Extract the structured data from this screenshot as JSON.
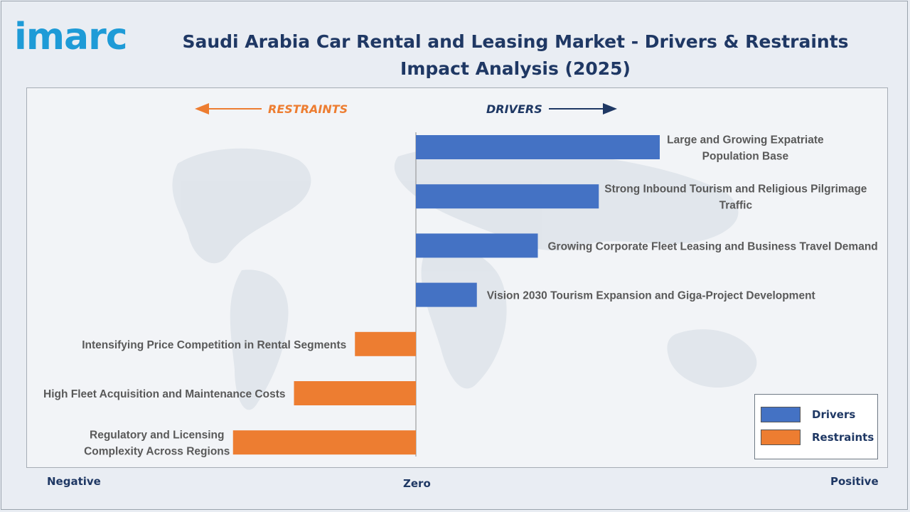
{
  "brand": {
    "logo_text": "imarc",
    "logo_color": "#1e9bd7"
  },
  "chart_data": {
    "type": "bar",
    "orientation": "horizontal",
    "title": "Saudi Arabia Car Rental and Leasing Market - Drivers & Restraints Impact Analysis (2025)",
    "title_lines": [
      "Saudi Arabia Car Rental and Leasing Market - Drivers & Restraints",
      "Impact Analysis (2025)"
    ],
    "header_labels": {
      "restraints": "RESTRAINTS",
      "drivers": "DRIVERS"
    },
    "axis_labels": {
      "left": "Negative",
      "center": "Zero",
      "right": "Positive"
    },
    "xlim": [
      -4.5,
      6.5
    ],
    "grid": false,
    "legend_position": "bottom-right",
    "series": [
      {
        "name": "Drivers",
        "color": "#4472c4"
      },
      {
        "name": "Restraints",
        "color": "#ed7d31"
      }
    ],
    "categories": [
      "Large and Growing Expatriate Population Base",
      "Strong Inbound Tourism and Religious Pilgrimage Traffic",
      "Growing Corporate Fleet Leasing and Business Travel Demand",
      "Vision 2030 Tourism Expansion and Giga-Project Development",
      "Intensifying Price Competition in Rental Segments",
      "High Fleet Acquisition and Maintenance Costs",
      "Regulatory and Licensing Complexity Across Regions"
    ],
    "label_lines": [
      [
        "Large and Growing Expatriate",
        "Population Base"
      ],
      [
        "Strong Inbound Tourism and Religious Pilgrimage",
        "Traffic"
      ],
      [
        "Growing Corporate Fleet Leasing and Business Travel Demand"
      ],
      [
        "Vision 2030 Tourism Expansion and Giga-Project Development"
      ],
      [
        "Intensifying Price Competition in Rental Segments"
      ],
      [
        "High Fleet Acquisition and Maintenance Costs"
      ],
      [
        "Regulatory and Licensing",
        "Complexity Across Regions"
      ]
    ],
    "values": [
      4,
      3,
      2,
      1,
      -1,
      -2,
      -3
    ],
    "series_of_bar": [
      "Drivers",
      "Drivers",
      "Drivers",
      "Drivers",
      "Restraints",
      "Restraints",
      "Restraints"
    ]
  }
}
